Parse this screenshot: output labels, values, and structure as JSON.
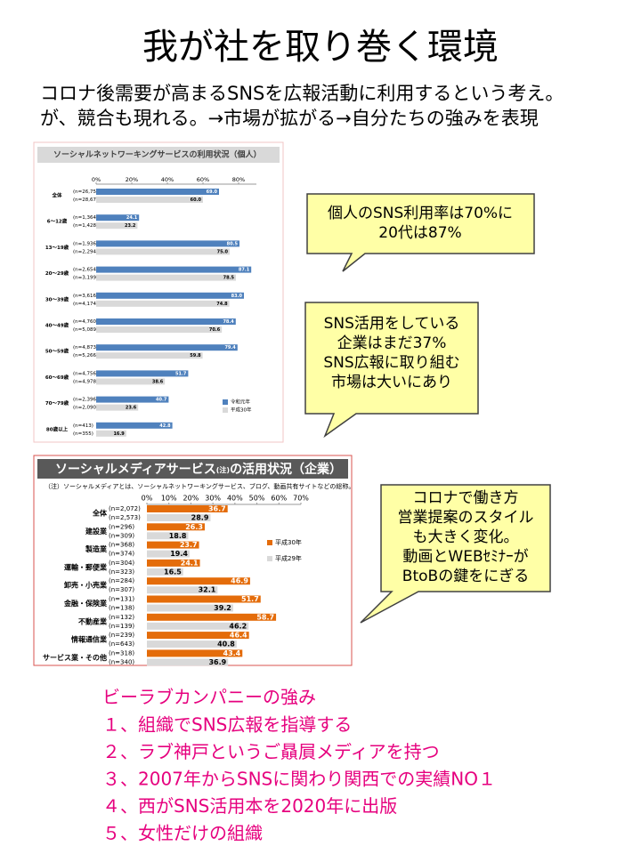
{
  "title": "我が社を取り巻く環境",
  "intro": [
    "コロナ後需要が高まるSNSを広報活動に利用するという考え。",
    "が、競合も現れる。→市場が拡がる→自分たちの強みを表現"
  ],
  "callouts": [
    {
      "lines": [
        "個人のSNS利用率は70%に",
        "20代は87%"
      ]
    },
    {
      "lines": [
        "SNS活用をしている",
        "企業はまだ37%",
        "SNS広報に取り組む",
        "市場は大いにあり"
      ]
    },
    {
      "lines": [
        "コロナで働き方",
        "営業提案のスタイル",
        "も大きく変化。",
        "動画とWEBｾﾐﾅｰが",
        "BtoBの鍵をにぎる"
      ]
    }
  ],
  "strengths": {
    "heading": "ビーラブカンパニーの強み",
    "items": [
      "１、組織でSNS広報を指導する",
      "２、ラブ神戸というご贔屓メディアを持つ",
      "３、2007年からSNSに関わり関西での実績NO１",
      "４、西がSNS活用本を2020年に出版",
      "５、女性だけの組織"
    ]
  },
  "chart_data": [
    {
      "type": "hbar",
      "title": "ソーシャルネットワーキングサービスの利用状況（個人）",
      "categories": [
        "全体",
        "6～12歳",
        "13～19歳",
        "20～29歳",
        "30～39歳",
        "40～49歳",
        "50～59歳",
        "60～69歳",
        "70～79歳",
        "80歳以上"
      ],
      "series": [
        {
          "name": "令和元年",
          "color": "#4f81bd",
          "values": [
            69.0,
            24.1,
            80.5,
            87.1,
            83.0,
            78.4,
            79.4,
            51.7,
            40.7,
            42.8
          ],
          "value_labels": [
            "69.0",
            "24.1",
            "80.5",
            "87.1",
            "83.0",
            "78.4",
            "79.4",
            "51.7",
            "40.7",
            "42.8"
          ],
          "n": [
            "(n=26,757)",
            "(n=1,364)",
            "(n=1,936)",
            "(n=2,654)",
            "(n=3,616)",
            "(n=4,760)",
            "(n=4,873)",
            "(n=4,756)",
            "(n=2,396)",
            "(n=413)"
          ]
        },
        {
          "name": "平成30年",
          "color": "#d9d9d9",
          "values": [
            60.0,
            23.2,
            75.0,
            78.5,
            74.8,
            70.6,
            59.8,
            38.6,
            23.6,
            16.9
          ],
          "value_labels": [
            "60.0",
            "23.2",
            "75.0",
            "78.5",
            "74.8",
            "70.6",
            "59.8",
            "38.6",
            "23.6",
            "16.9"
          ],
          "n": [
            "(n=28,675)",
            "(n=1,428)",
            "(n=2,294)",
            "(n=3,199)",
            "(n=4,174)",
            "(n=5,089)",
            "(n=5,266)",
            "(n=4,978)",
            "(n=2,090)",
            "(n=355)"
          ]
        }
      ],
      "xlim": [
        0,
        90
      ],
      "xticks": [
        {
          "value": 0,
          "label": "0%"
        },
        {
          "value": 20,
          "label": "20%"
        },
        {
          "value": 40,
          "label": "40%"
        },
        {
          "value": 60,
          "label": "60%"
        },
        {
          "value": 80,
          "label": "80%"
        }
      ]
    },
    {
      "type": "hbar",
      "title": "ソーシャルメディアサービス",
      "title_note": "(注)",
      "title_suffix": "の活用状況（企業）",
      "note": "（注）ソーシャルメディアとは、ソーシャルネットワーキングサービス、ブログ、動画共有サイトなどの総称。",
      "categories": [
        "全体",
        "建設業",
        "製造業",
        "運輸・郵便業",
        "卸売・小売業",
        "金融・保険業",
        "不動産業",
        "情報通信業",
        "サービス業・その他"
      ],
      "series": [
        {
          "name": "平成30年",
          "color": "#e46c0a",
          "values": [
            36.7,
            26.3,
            23.7,
            24.1,
            46.9,
            51.7,
            58.7,
            46.4,
            43.4
          ],
          "n": [
            "(n=2,072)",
            "(n=296)",
            "(n=368)",
            "(n=304)",
            "(n=284)",
            "(n=131)",
            "(n=132)",
            "(n=239)",
            "(n=318)"
          ]
        },
        {
          "name": "平成29年",
          "color": "#d9d9d9",
          "values": [
            28.9,
            18.8,
            19.4,
            16.5,
            32.1,
            39.2,
            46.2,
            40.8,
            36.9
          ],
          "n": [
            "(n=2,573)",
            "(n=309)",
            "(n=374)",
            "(n=323)",
            "(n=307)",
            "(n=138)",
            "(n=139)",
            "(n=643)",
            "(n=340)"
          ]
        }
      ],
      "xlim": [
        0,
        70
      ],
      "xticks": [
        {
          "value": 0,
          "label": "0%"
        },
        {
          "value": 10,
          "label": "10%"
        },
        {
          "value": 20,
          "label": "20%"
        },
        {
          "value": 30,
          "label": "30%"
        },
        {
          "value": 40,
          "label": "40%"
        },
        {
          "value": 50,
          "label": "50%"
        },
        {
          "value": 60,
          "label": "60%"
        },
        {
          "value": 70,
          "label": "70%"
        }
      ]
    }
  ]
}
